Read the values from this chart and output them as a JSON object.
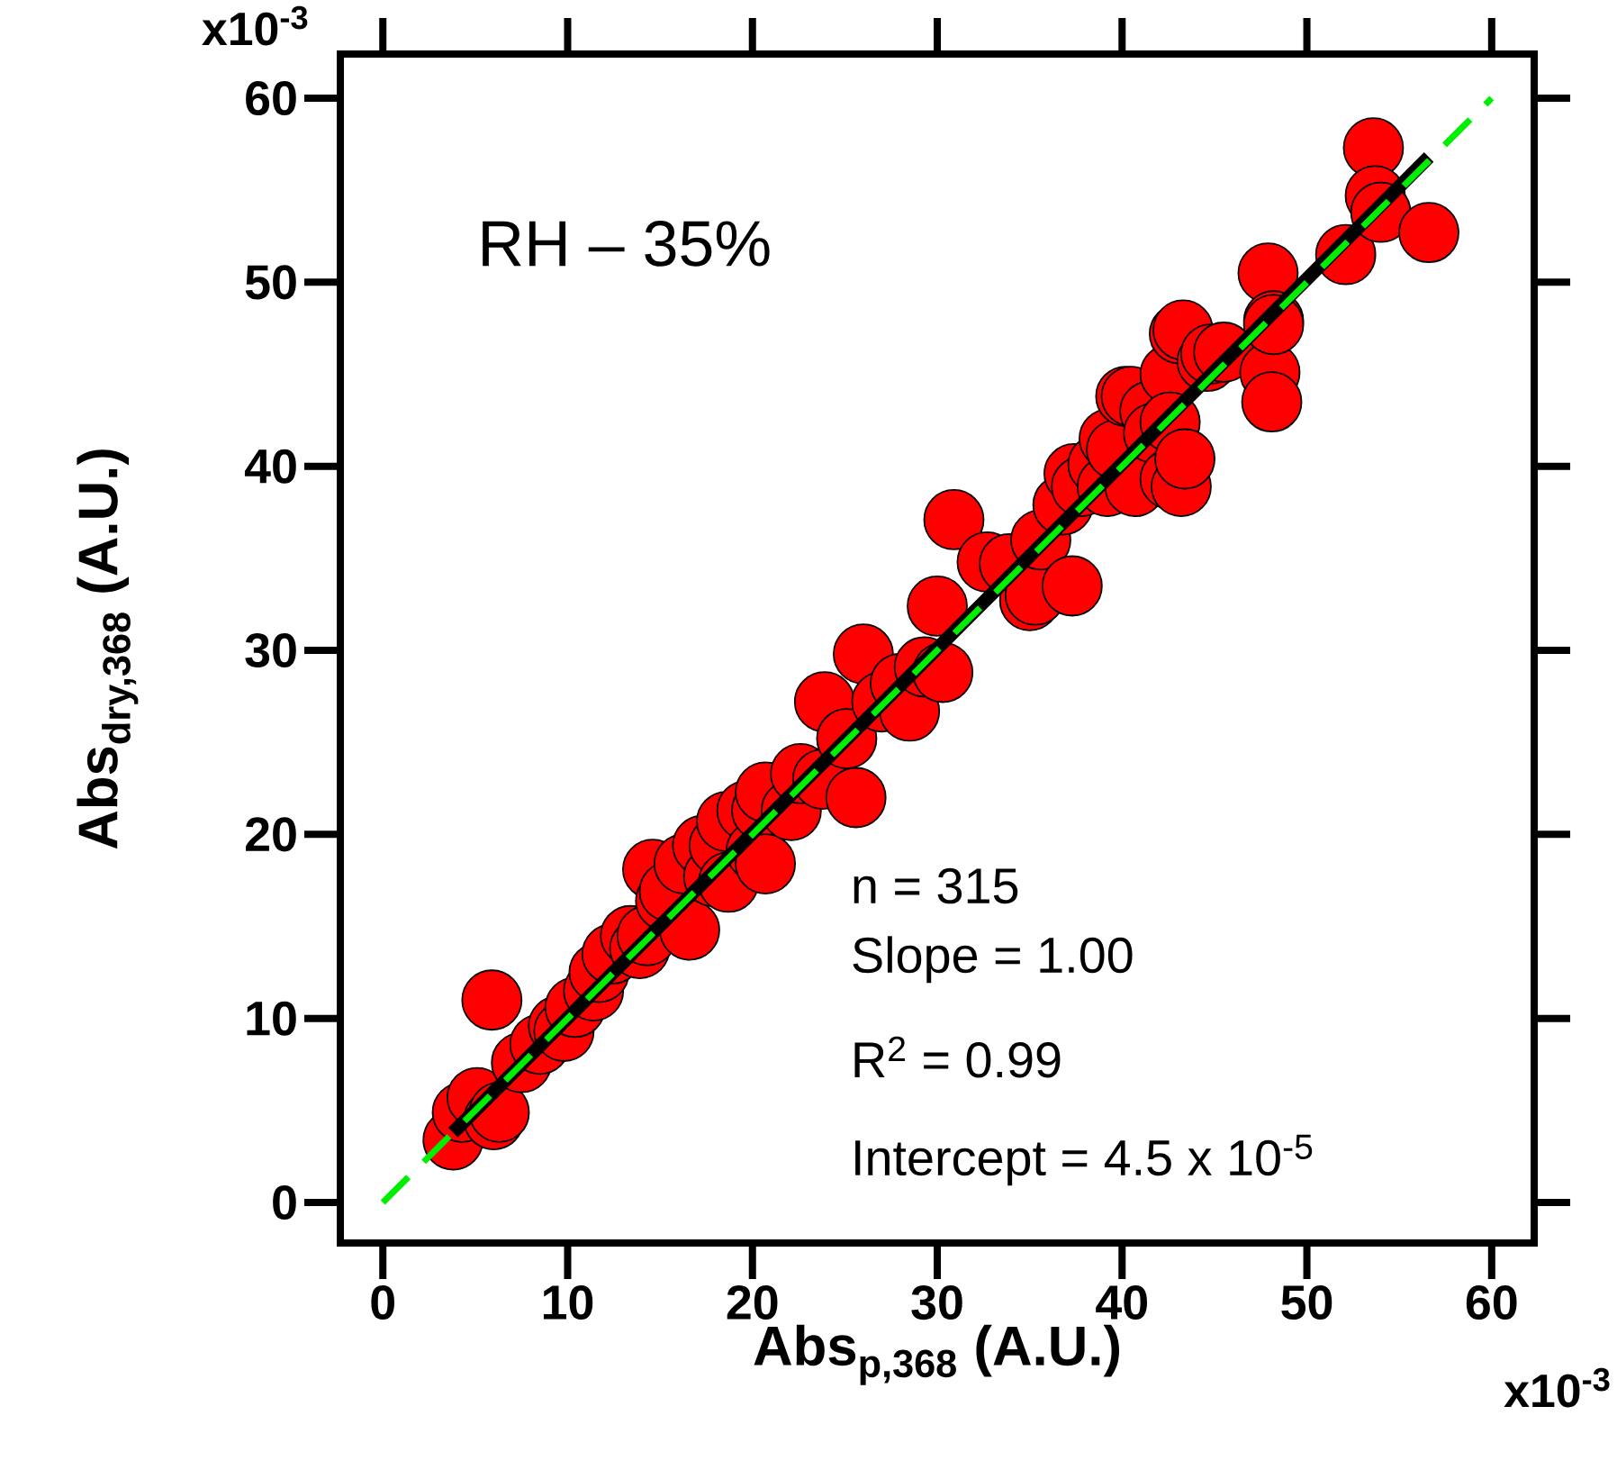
{
  "chart_data": {
    "type": "scatter",
    "xlabel": "Abs$_{p,368}$ (A.U.)",
    "ylabel": "Abs$_{dry,368}$ (A.U.)",
    "annotations": [
      "RH – 35%",
      "n = 315",
      "Slope = 1.00",
      "R$^{2}$ = 0.99",
      "Intercept = 4.5 x 10$^{-5}$",
      "x10$^{-3}$",
      "x10$^{-3}$"
    ],
    "xlim": [
      -2.3,
      62.3
    ],
    "ylim": [
      -2.2,
      62.4
    ],
    "xticks": [
      0,
      10,
      20,
      30,
      40,
      50,
      60
    ],
    "yticks": [
      0,
      10,
      20,
      30,
      40,
      50,
      60
    ],
    "series": [
      {
        "type": "scatter",
        "color": "#ff0000",
        "marker": "circle",
        "x": [
          3.8,
          4.3,
          5.1,
          5.9,
          6.0,
          6.3,
          7.5,
          8.5,
          9.5,
          9.8,
          10.4,
          11.4,
          11.7,
          12.4,
          13.4,
          13.9,
          14.3,
          14.6,
          15.3,
          15.5,
          16.3,
          16.6,
          17.3,
          17.9,
          18.2,
          18.6,
          18.7,
          19.7,
          20.2,
          20.5,
          20.7,
          20.7,
          22.1,
          22.6,
          23.8,
          23.9,
          25.1,
          25.6,
          26.0,
          27.0,
          28.0,
          28.5,
          29.3,
          30.0,
          30.3,
          30.9,
          32.7,
          33.9,
          35.0,
          35.3,
          35.6,
          36.8,
          37.3,
          37.4,
          37.8,
          38.7,
          39.2,
          39.3,
          39.7,
          40.2,
          40.5,
          40.7,
          41.5,
          41.7,
          42.6,
          42.6,
          42.6,
          43.1,
          43.2,
          43.3,
          43.4,
          44.6,
          44.8,
          45.5,
          47.9,
          48.0,
          48.1,
          48.2,
          48.2,
          52.1,
          53.6,
          53.7,
          54.0,
          56.6
        ],
        "values": [
          3.4,
          4.9,
          5.7,
          11.0,
          4.5,
          4.9,
          7.6,
          8.6,
          9.6,
          9.3,
          10.6,
          11.5,
          12.5,
          13.5,
          14.5,
          13.8,
          14.5,
          18.1,
          16.4,
          16.9,
          18.4,
          14.8,
          19.4,
          17.7,
          19.4,
          20.7,
          17.4,
          21.3,
          19.1,
          21.3,
          22.3,
          18.4,
          21.3,
          23.3,
          23.0,
          27.2,
          25.2,
          22.0,
          29.8,
          27.2,
          28.2,
          26.7,
          29.1,
          32.4,
          28.8,
          37.1,
          34.8,
          34.7,
          32.7,
          33.0,
          36.0,
          37.9,
          33.5,
          39.6,
          38.9,
          40.1,
          38.9,
          41.5,
          40.9,
          43.8,
          43.8,
          38.9,
          43.0,
          41.8,
          45.0,
          42.4,
          39.3,
          47.2,
          38.9,
          47.4,
          40.4,
          45.7,
          46.1,
          46.2,
          50.5,
          45.1,
          43.5,
          47.9,
          47.7,
          51.5,
          57.3,
          54.7,
          53.8,
          52.7
        ]
      },
      {
        "type": "line",
        "color": "#000000",
        "marker": "none",
        "line_style": "solid",
        "x": [
          3.8,
          56.6
        ],
        "values": [
          3.8,
          56.8
        ]
      },
      {
        "type": "line",
        "color": "#00ee00",
        "marker": "none",
        "line_style": "dashed",
        "x": [
          0,
          60
        ],
        "values": [
          0,
          60
        ]
      }
    ]
  }
}
